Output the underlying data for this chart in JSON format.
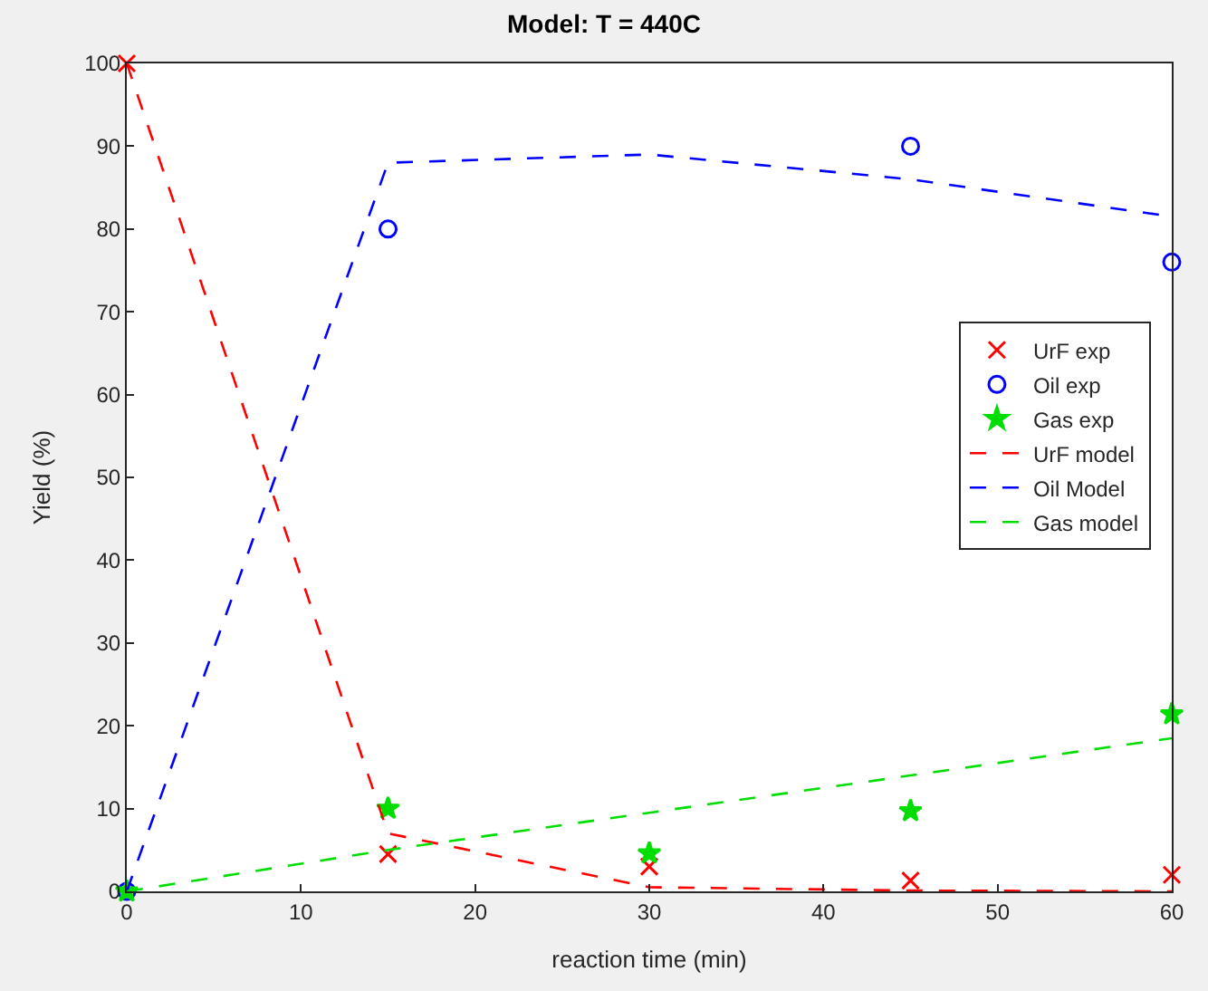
{
  "chart_data": {
    "type": "line",
    "title": "Model: T = 440C",
    "xlabel": "reaction time (min)",
    "ylabel": "Yield (%)",
    "xlim": [
      0,
      60
    ],
    "xticks": [
      0,
      10,
      20,
      30,
      40,
      50,
      60
    ],
    "ylim": [
      0,
      100
    ],
    "yticks": [
      0,
      10,
      20,
      30,
      40,
      50,
      60,
      70,
      80,
      90,
      100
    ],
    "x": [
      0,
      15,
      30,
      45,
      60
    ],
    "legend": "right",
    "series": [
      {
        "name": "UrF exp",
        "type": "scatter",
        "marker": "cross",
        "color": "#ff0000",
        "values": [
          100,
          4.5,
          3,
          1.3,
          2
        ]
      },
      {
        "name": "Oil exp",
        "type": "scatter",
        "marker": "circle",
        "color": "#0000ff",
        "values": [
          0,
          80,
          null,
          90,
          76
        ]
      },
      {
        "name": "Gas exp",
        "type": "scatter",
        "marker": "star",
        "color": "#00dd00",
        "values": [
          0,
          10,
          4.6,
          9.7,
          21.4
        ]
      },
      {
        "name": "UrF model",
        "line_style": "dashed",
        "color": "#ff0000",
        "values": [
          100,
          7,
          0.5,
          0.1,
          0
        ]
      },
      {
        "name": "Oil Model",
        "line_style": "dashed",
        "color": "#0000ff",
        "values": [
          0,
          88,
          89,
          86,
          81.5
        ]
      },
      {
        "name": "Gas model",
        "line_style": "dashed",
        "color": "#00dd00",
        "values": [
          0,
          5,
          9.5,
          14,
          18.5
        ]
      }
    ]
  }
}
